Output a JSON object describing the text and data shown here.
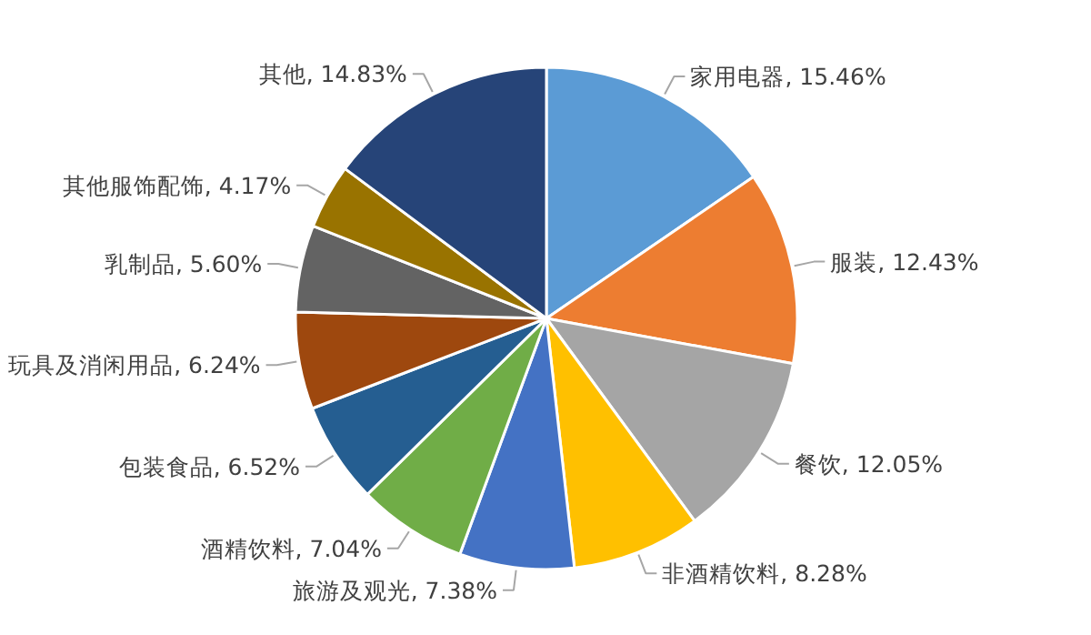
{
  "chart_data": {
    "type": "pie",
    "categories": [
      "家用电器",
      "服装",
      "餐饮",
      "非酒精饮料",
      "旅游及观光",
      "酒精饮料",
      "包装食品",
      "玩具及消闲用品",
      "乳制品",
      "其他服饰配饰",
      "其他"
    ],
    "values": [
      15.46,
      12.43,
      12.05,
      8.28,
      7.38,
      7.04,
      6.52,
      6.24,
      5.6,
      4.17,
      14.83
    ],
    "value_labels": [
      "15.46%",
      "12.43%",
      "12.05%",
      "8.28%",
      "7.38%",
      "7.04%",
      "6.52%",
      "6.24%",
      "5.60%",
      "4.17%",
      "14.83%"
    ],
    "colors": [
      "#5b9bd5",
      "#ed7d31",
      "#a5a5a5",
      "#ffc000",
      "#4472c4",
      "#70ad47",
      "#255e91",
      "#9e480e",
      "#636363",
      "#997300",
      "#264478"
    ]
  }
}
